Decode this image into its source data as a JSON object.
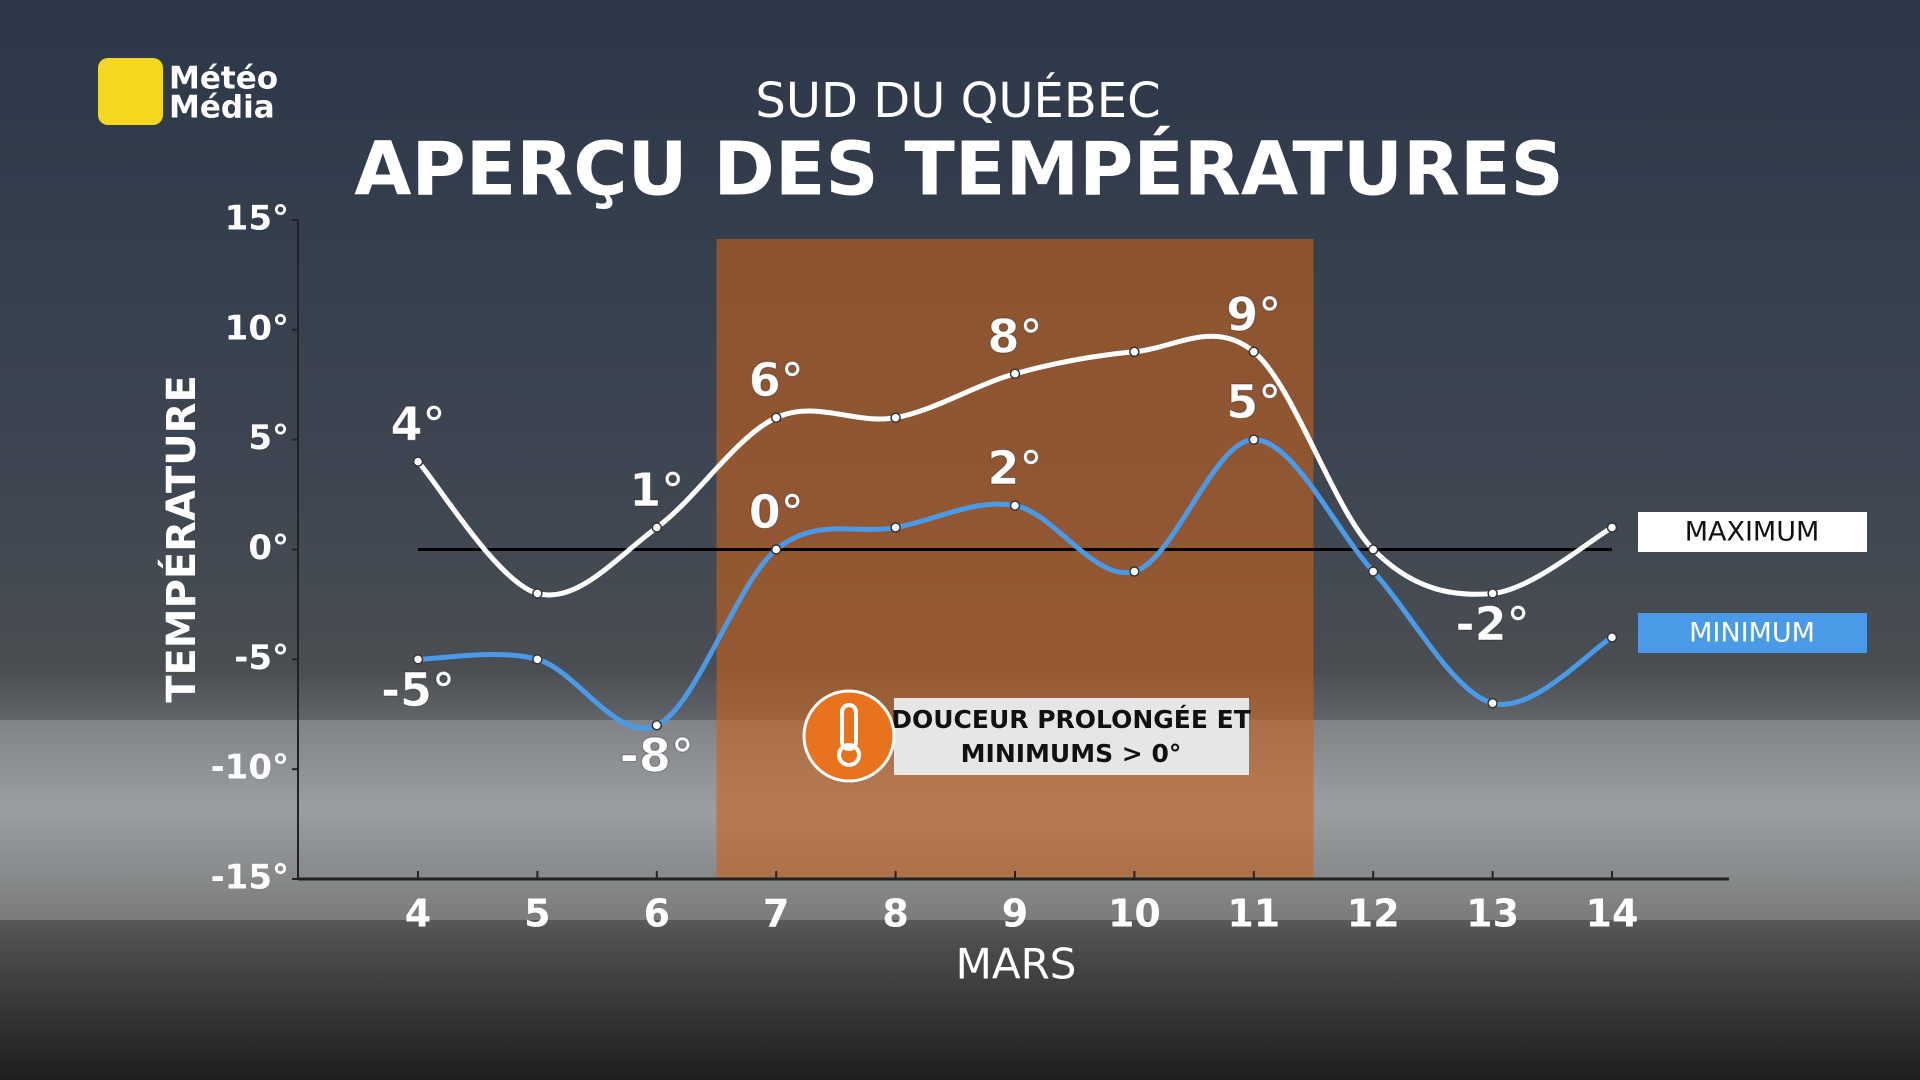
{
  "logo": [
    "Météo",
    "Média"
  ],
  "chart_data": {
    "type": "line",
    "title": "SUD DU QUÉBEC",
    "subtitle": "APERÇU DES TEMPÉRATURES",
    "y_label": "TEMPÉRATURE",
    "x_label": "MARS",
    "categories": [
      "4",
      "5",
      "6",
      "7",
      "8",
      "9",
      "10",
      "11",
      "12",
      "13",
      "14"
    ],
    "series": [
      {
        "name": "MAXIMUM",
        "color": "#ffffff",
        "values": [
          4,
          -2,
          1,
          6,
          6,
          8,
          9,
          9,
          0,
          -2,
          1
        ],
        "value_labels": [
          "4°",
          null,
          "1°",
          "6°",
          null,
          "8°",
          null,
          "9°",
          null,
          "-2°",
          null
        ]
      },
      {
        "name": "MINIMUM",
        "color": "#4a9ae8",
        "values": [
          -5,
          -5,
          -8,
          0,
          1,
          2,
          -1,
          5,
          -1,
          -7,
          -4
        ],
        "value_labels": [
          "-5°",
          null,
          "-8°",
          "0°",
          null,
          "2°",
          null,
          "5°",
          null,
          null,
          null
        ]
      }
    ],
    "ylim": [
      -15,
      15
    ],
    "yticks": [
      {
        "value": -15,
        "label": "-15°"
      },
      {
        "value": -10,
        "label": "-10°"
      },
      {
        "value": -5,
        "label": "-5°"
      },
      {
        "value": 0,
        "label": "0°"
      },
      {
        "value": 5,
        "label": "5°"
      },
      {
        "value": 10,
        "label": "10°"
      },
      {
        "value": 15,
        "label": "15°"
      }
    ],
    "annotation": [
      "DOUCEUR PROLONGÉE ET",
      "MINIMUMS > 0°"
    ]
  }
}
